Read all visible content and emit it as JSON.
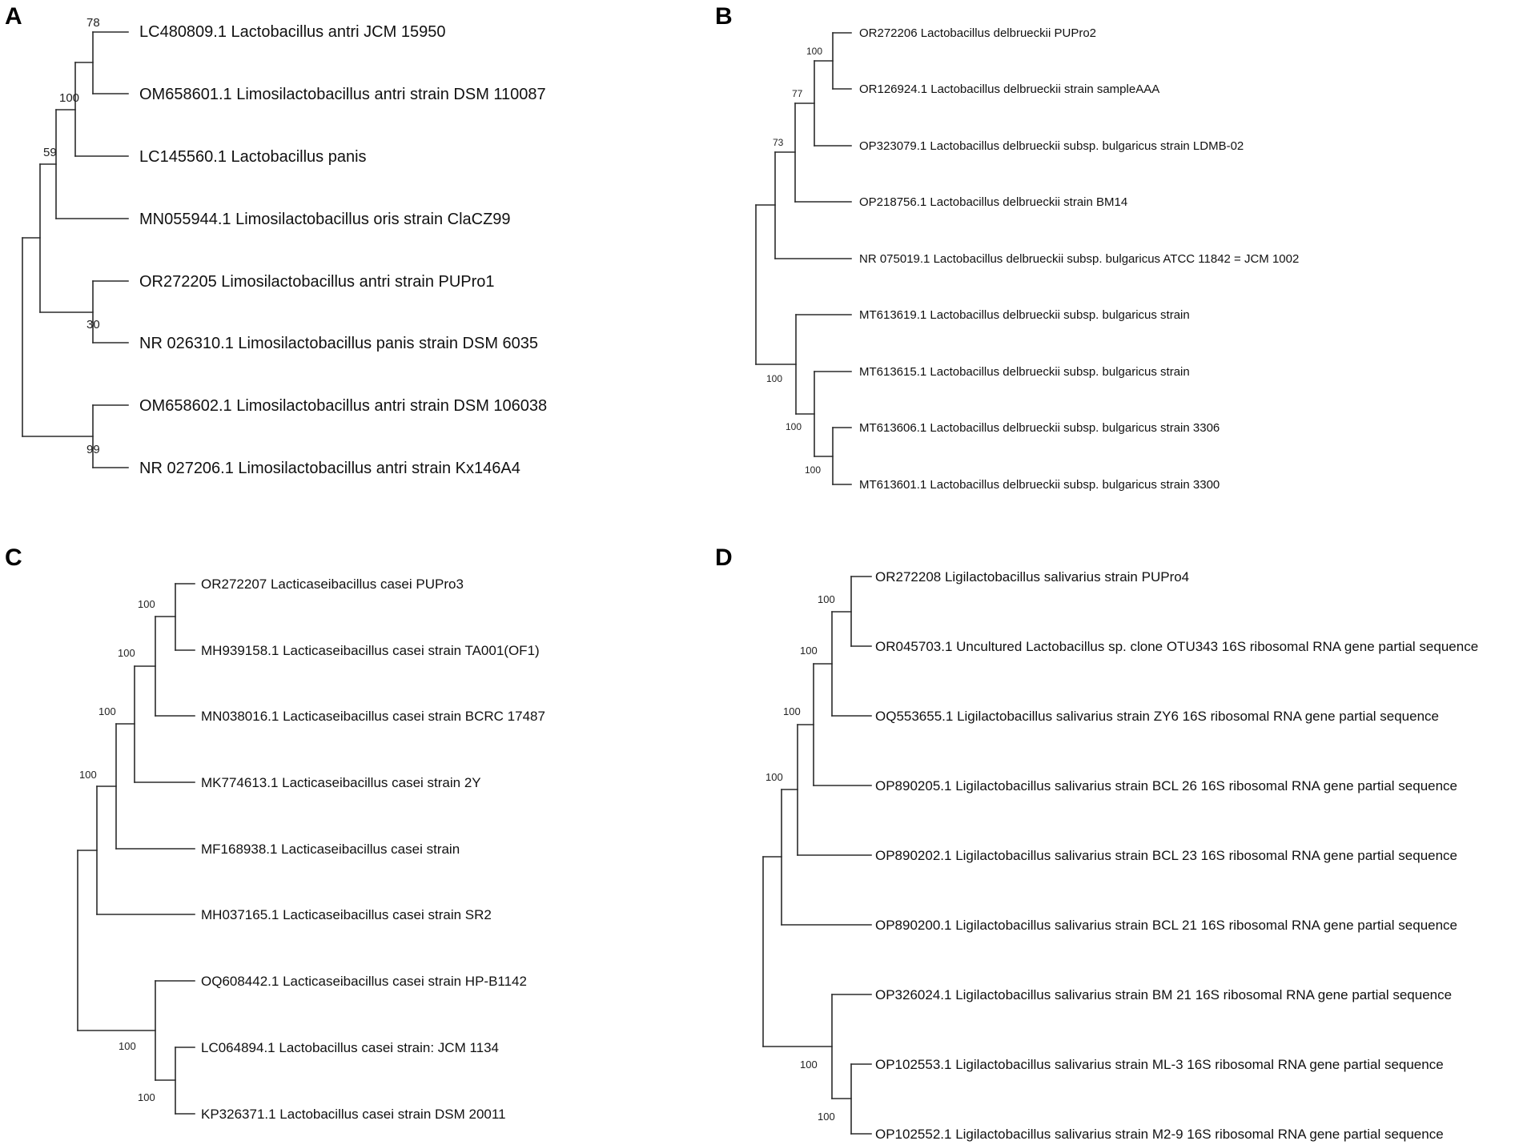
{
  "panels": [
    {
      "letter": "A",
      "leaves": [
        "LC480809.1 Lactobacillus antri JCM 15950",
        "OM658601.1 Limosilactobacillus antri strain DSM 110087",
        "LC145560.1 Lactobacillus panis",
        "MN055944.1 Limosilactobacillus oris strain ClaCZ99",
        "OR272205 Limosilactobacillus antri strain PUPro1",
        "NR 026310.1 Limosilactobacillus panis strain DSM 6035",
        "OM658602.1 Limosilactobacillus antri strain DSM 106038",
        "NR 027206.1 Limosilactobacillus antri strain Kx146A4"
      ],
      "bootstraps": [
        "78",
        "100",
        "59",
        "30",
        "99"
      ]
    },
    {
      "letter": "B",
      "leaves": [
        "OR272206 Lactobacillus delbrueckii PUPro2",
        "OR126924.1 Lactobacillus delbrueckii strain sampleAAA",
        "OP323079.1 Lactobacillus delbrueckii subsp. bulgaricus strain LDMB-02",
        "OP218756.1 Lactobacillus delbrueckii strain BM14",
        "NR 075019.1 Lactobacillus delbrueckii subsp. bulgaricus ATCC 11842 = JCM 1002",
        "MT613619.1 Lactobacillus delbrueckii subsp. bulgaricus strain",
        "MT613615.1 Lactobacillus delbrueckii subsp. bulgaricus strain",
        "MT613606.1 Lactobacillus delbrueckii subsp. bulgaricus strain 3306",
        "MT613601.1 Lactobacillus delbrueckii subsp. bulgaricus strain 3300"
      ],
      "bootstraps": [
        "100",
        "77",
        "73",
        "100",
        "100",
        "100"
      ]
    },
    {
      "letter": "C",
      "leaves": [
        "OR272207 Lacticaseibacillus casei PUPro3",
        "MH939158.1 Lacticaseibacillus casei strain TA001(OF1)",
        "MN038016.1 Lacticaseibacillus casei strain BCRC 17487",
        "MK774613.1 Lacticaseibacillus casei strain 2Y",
        "MF168938.1 Lacticaseibacillus casei strain",
        "MH037165.1 Lacticaseibacillus casei strain SR2",
        "OQ608442.1 Lacticaseibacillus casei strain HP-B1142",
        "LC064894.1 Lactobacillus casei strain: JCM 1134",
        "KP326371.1 Lactobacillus casei strain DSM 20011"
      ],
      "bootstraps": [
        "100",
        "100",
        "100",
        "100",
        "100",
        "100"
      ]
    },
    {
      "letter": "D",
      "leaves": [
        "OR272208 Ligilactobacillus salivarius strain PUPro4",
        "OR045703.1 Uncultured Lactobacillus sp. clone OTU343 16S ribosomal RNA gene partial sequence",
        "OQ553655.1 Ligilactobacillus salivarius strain ZY6 16S ribosomal RNA gene partial sequence",
        "OP890205.1 Ligilactobacillus salivarius strain BCL 26 16S ribosomal RNA gene partial sequence",
        "OP890202.1 Ligilactobacillus salivarius strain BCL 23 16S ribosomal RNA gene partial sequence",
        "OP890200.1 Ligilactobacillus salivarius strain BCL 21 16S ribosomal RNA gene partial sequence",
        "OP326024.1 Ligilactobacillus salivarius strain BM 21 16S ribosomal RNA gene partial sequence",
        "OP102553.1 Ligilactobacillus salivarius strain ML-3 16S ribosomal RNA gene partial sequence",
        "OP102552.1 Ligilactobacillus salivarius strain M2-9 16S ribosomal RNA gene partial sequence"
      ],
      "bootstraps": [
        "100",
        "100",
        "100",
        "100",
        "100",
        "100"
      ]
    }
  ]
}
